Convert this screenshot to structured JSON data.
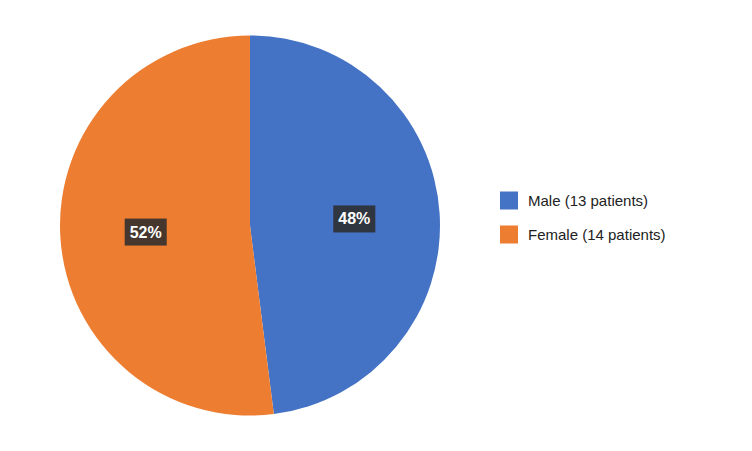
{
  "chart_data": {
    "type": "pie",
    "categories": [
      "Male (13 patients)",
      "Female (14 patients)"
    ],
    "values": [
      48,
      52
    ],
    "value_labels": [
      "48%",
      "52%"
    ],
    "colors": [
      "#4472C4",
      "#ED7D31"
    ],
    "data_labels": true,
    "legend": "right"
  }
}
